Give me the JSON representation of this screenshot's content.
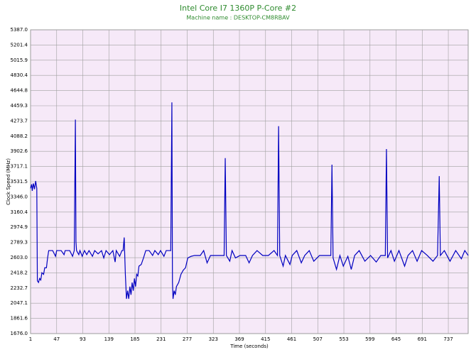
{
  "chart_data": {
    "type": "line",
    "title": "Intel Core I7 1360P P-Core #2",
    "subtitle": "Machine name : DESKTOP-CM8RBAV",
    "x_label": "Time (seconds)",
    "y_label": "Clock Speed (MHz)",
    "color": "#0000c0",
    "grid": true,
    "xlim": [
      1,
      772
    ],
    "ylim": [
      1676.0,
      5387.0
    ],
    "xticks": [
      1,
      47,
      93,
      139,
      185,
      231,
      277,
      323,
      369,
      415,
      461,
      507,
      553,
      599,
      645,
      691,
      737
    ],
    "yticks": [
      {
        "value": 1676.0,
        "label": "1676.0"
      },
      1861.6,
      2047.1,
      2232.7,
      2418.2,
      {
        "value": 2603.0,
        "label": "2603.0"
      },
      2789.3,
      2974.9,
      3160.4,
      {
        "value": 3346.0,
        "label": "3346.0"
      },
      3531.5,
      3717.1,
      3902.6,
      4088.2,
      4273.7,
      4459.3,
      4644.8,
      4830.4,
      5015.9,
      5201.4,
      {
        "value": 5387.0,
        "label": "5387.0"
      }
    ],
    "x": [
      1,
      3,
      4,
      6,
      8,
      10,
      12,
      13,
      15,
      17,
      19,
      21,
      24,
      26,
      29,
      31,
      33,
      40,
      45,
      47,
      55,
      60,
      62,
      70,
      75,
      78,
      80,
      81,
      82,
      86,
      88,
      92,
      96,
      100,
      104,
      110,
      114,
      120,
      126,
      130,
      134,
      140,
      146,
      150,
      152,
      158,
      162,
      164,
      166,
      168,
      170,
      172,
      174,
      176,
      178,
      180,
      182,
      184,
      186,
      188,
      190,
      192,
      196,
      200,
      204,
      210,
      216,
      220,
      226,
      230,
      236,
      240,
      248,
      250,
      251,
      252,
      254,
      256,
      258,
      262,
      266,
      270,
      274,
      278,
      284,
      290,
      300,
      306,
      312,
      318,
      330,
      342,
      344,
      346,
      352,
      356,
      362,
      370,
      380,
      386,
      392,
      400,
      410,
      420,
      430,
      436,
      438,
      440,
      446,
      450,
      458,
      462,
      470,
      478,
      484,
      492,
      500,
      510,
      520,
      530,
      532,
      534,
      540,
      546,
      552,
      560,
      566,
      572,
      580,
      590,
      600,
      610,
      618,
      626,
      628,
      630,
      636,
      642,
      650,
      660,
      666,
      674,
      682,
      690,
      700,
      710,
      718,
      721,
      723,
      730,
      740,
      750,
      760,
      766,
      772
    ],
    "values": [
      3450,
      3500,
      3420,
      3510,
      3440,
      3540,
      3450,
      2320,
      2300,
      2350,
      2330,
      2420,
      2400,
      2480,
      2480,
      2600,
      2690,
      2690,
      2620,
      2690,
      2690,
      2640,
      2690,
      2690,
      2620,
      2690,
      4290,
      2800,
      2690,
      2640,
      2690,
      2620,
      2690,
      2640,
      2690,
      2620,
      2690,
      2650,
      2690,
      2600,
      2690,
      2640,
      2690,
      2550,
      2690,
      2620,
      2690,
      2690,
      2850,
      2400,
      2100,
      2200,
      2100,
      2250,
      2150,
      2300,
      2200,
      2350,
      2250,
      2400,
      2380,
      2500,
      2520,
      2600,
      2690,
      2690,
      2630,
      2690,
      2640,
      2690,
      2620,
      2690,
      2690,
      4500,
      2300,
      2100,
      2200,
      2150,
      2250,
      2300,
      2400,
      2450,
      2480,
      2600,
      2620,
      2630,
      2630,
      2690,
      2540,
      2630,
      2630,
      2630,
      3820,
      2630,
      2560,
      2690,
      2600,
      2630,
      2630,
      2540,
      2630,
      2690,
      2630,
      2630,
      2690,
      2630,
      4210,
      2630,
      2500,
      2630,
      2520,
      2630,
      2690,
      2540,
      2630,
      2690,
      2560,
      2630,
      2630,
      2630,
      3740,
      2600,
      2460,
      2630,
      2500,
      2620,
      2460,
      2630,
      2690,
      2560,
      2630,
      2550,
      2630,
      2630,
      3930,
      2600,
      2690,
      2560,
      2690,
      2500,
      2630,
      2690,
      2560,
      2690,
      2630,
      2560,
      2630,
      3600,
      2630,
      2690,
      2560,
      2690,
      2590,
      2690,
      2630
    ]
  }
}
